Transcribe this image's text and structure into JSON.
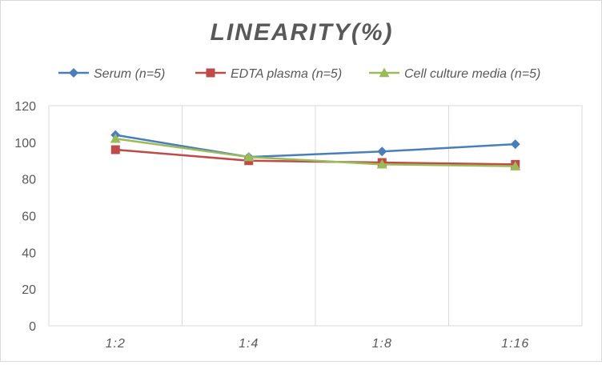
{
  "chart_data": {
    "type": "line",
    "title": "LINEARITY(%)",
    "categories": [
      "1:2",
      "1:4",
      "1:8",
      "1:16"
    ],
    "ylim": [
      0,
      120
    ],
    "yticks": [
      0,
      20,
      40,
      60,
      80,
      100,
      120
    ],
    "grid": "vertical",
    "legend_position": "top",
    "series": [
      {
        "name": "Serum (n=5)",
        "color": "#4a7ebb",
        "marker": "diamond",
        "values": [
          104,
          92,
          95,
          99
        ]
      },
      {
        "name": "EDTA plasma (n=5)",
        "color": "#be4b48",
        "marker": "square",
        "values": [
          96,
          90,
          89,
          88
        ]
      },
      {
        "name": "Cell culture media (n=5)",
        "color": "#9bbb59",
        "marker": "triangle",
        "values": [
          102,
          92,
          88,
          87
        ]
      }
    ]
  }
}
